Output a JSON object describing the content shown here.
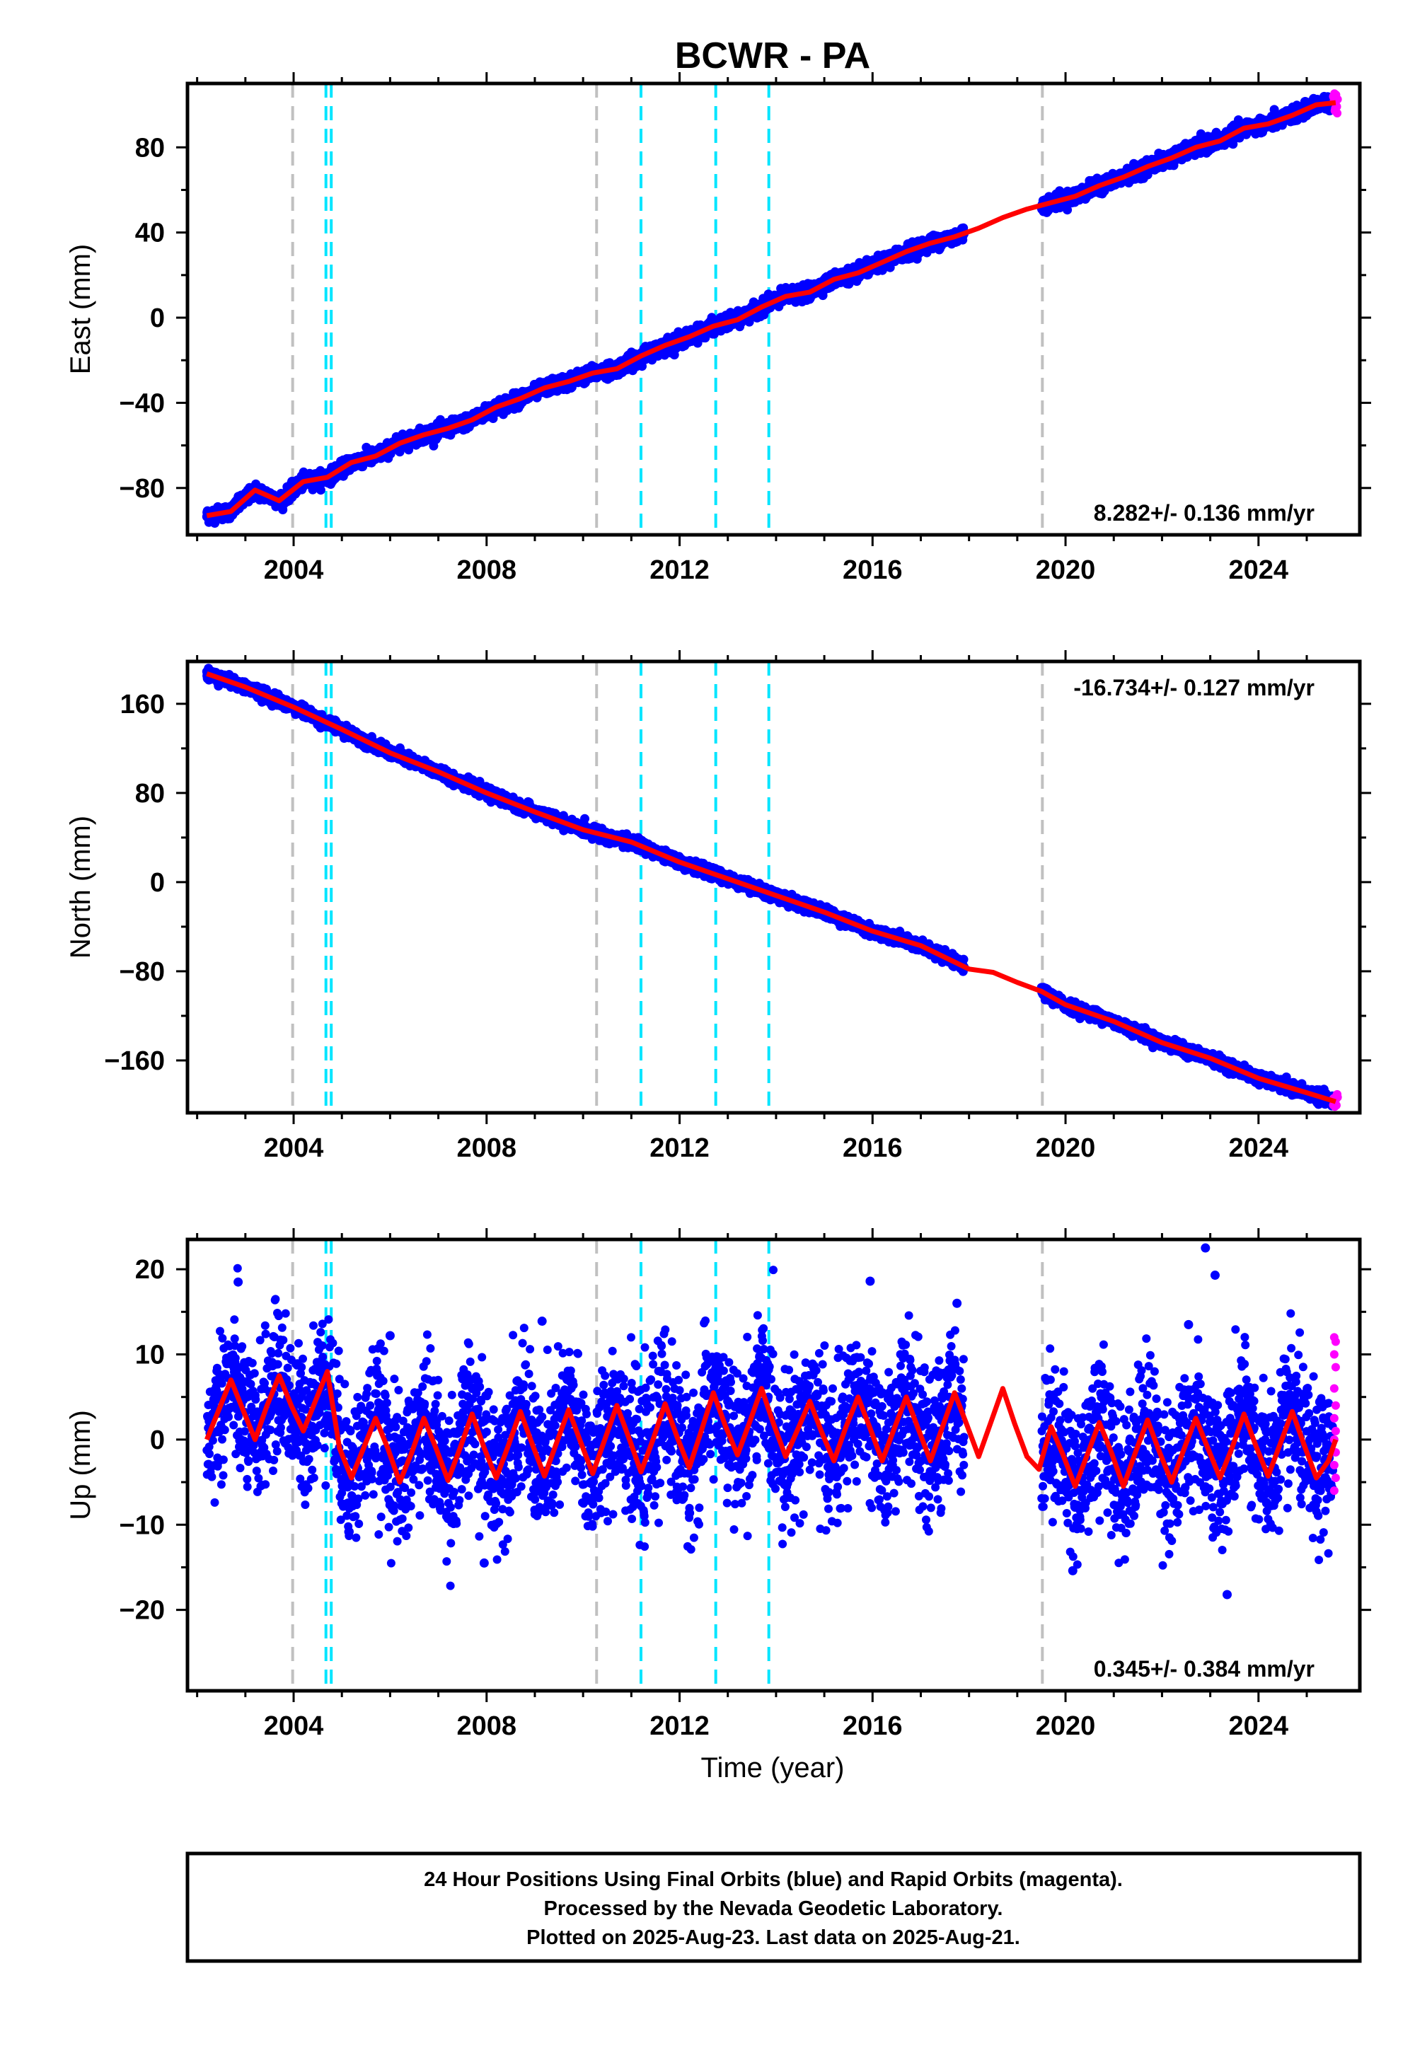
{
  "title": "BCWR - PA",
  "xlabel": "Time (year)",
  "footer": [
    "24 Hour Positions Using Final Orbits (blue) and Rapid Orbits (magenta).",
    "Processed by the Nevada Geodetic Laboratory.",
    "Plotted on 2025-Aug-23. Last data on 2025-Aug-21."
  ],
  "colors": {
    "final_orbits": "#0000ff",
    "rapid_orbits": "#ff00ff",
    "model": "#ff0000",
    "equipment_change_lines": "#c0c0c0",
    "earthquake_lines": "#00e5ff"
  },
  "chart_data": [
    {
      "type": "scatter",
      "ylabel": "East (mm)",
      "rate": "8.282+/- 0.136 mm/yr",
      "xlim": [
        2001.8,
        2026.1
      ],
      "ylim": [
        -102,
        110
      ],
      "xticks": [
        2004,
        2008,
        2012,
        2016,
        2020,
        2024
      ],
      "yticks": [
        -80,
        -40,
        0,
        40,
        80
      ],
      "ytick_labels": [
        "−80",
        "−40",
        "0",
        "40",
        "80"
      ],
      "model": {
        "x": [
          2002.2,
          2002.7,
          2003.2,
          2003.7,
          2004.2,
          2004.7,
          2005.2,
          2005.7,
          2006.2,
          2006.7,
          2007.2,
          2007.7,
          2008.2,
          2008.7,
          2009.2,
          2009.7,
          2010.2,
          2010.7,
          2011.2,
          2011.7,
          2012.2,
          2012.7,
          2013.2,
          2013.7,
          2014.2,
          2014.7,
          2015.2,
          2015.7,
          2016.2,
          2016.7,
          2017.2,
          2017.7,
          2018.2,
          2018.7,
          2019.2,
          2019.7,
          2020.2,
          2020.7,
          2021.2,
          2021.7,
          2022.2,
          2022.7,
          2023.2,
          2023.7,
          2024.2,
          2024.7,
          2025.2,
          2025.6
        ],
        "y": [
          -93,
          -91,
          -81,
          -86,
          -77,
          -75,
          -68,
          -65,
          -59,
          -55,
          -52,
          -48,
          -42,
          -38,
          -33,
          -30,
          -26,
          -24,
          -18,
          -13,
          -9,
          -4,
          -1,
          5,
          10,
          12,
          18,
          21,
          26,
          31,
          35,
          38,
          42,
          47,
          51,
          54,
          57,
          62,
          66,
          71,
          75,
          80,
          83,
          89,
          91,
          95,
          100,
          101
        ]
      },
      "final_orbits_range": [
        2002.2,
        2025.55
      ],
      "rapid_orbits_range": [
        2025.55,
        2025.64
      ],
      "data_gap": [
        2017.9,
        2019.5
      ],
      "equipment_changes": [
        2003.98,
        2010.28,
        2019.52
      ],
      "earthquakes": [
        2004.67,
        2004.78,
        2011.2,
        2012.75,
        2013.85
      ]
    },
    {
      "type": "scatter",
      "ylabel": "North (mm)",
      "rate": "-16.734+/- 0.127 mm/yr",
      "xlim": [
        2001.8,
        2026.1
      ],
      "ylim": [
        -207,
        198
      ],
      "xticks": [
        2004,
        2008,
        2012,
        2016,
        2020,
        2024
      ],
      "yticks": [
        -160,
        -80,
        0,
        80,
        160
      ],
      "ytick_labels": [
        "−160",
        "−80",
        "0",
        "80",
        "160"
      ],
      "model": {
        "x": [
          2002.2,
          2003.0,
          2004.0,
          2005.0,
          2006.0,
          2007.0,
          2008.0,
          2009.0,
          2010.0,
          2011.0,
          2012.0,
          2013.0,
          2014.0,
          2015.0,
          2016.0,
          2017.0,
          2018.0,
          2018.5,
          2019.0,
          2019.5,
          2020.0,
          2021.0,
          2022.0,
          2023.0,
          2024.0,
          2025.0,
          2025.6
        ],
        "y": [
          187,
          175,
          157,
          137,
          116,
          99,
          80,
          63,
          47,
          36,
          18,
          3,
          -12,
          -27,
          -44,
          -57,
          -78,
          -81,
          -90,
          -98,
          -110,
          -125,
          -144,
          -158,
          -176,
          -189,
          -197
        ]
      },
      "final_orbits_range": [
        2002.2,
        2025.55
      ],
      "rapid_orbits_range": [
        2025.55,
        2025.64
      ],
      "data_gap": [
        2017.9,
        2019.5
      ],
      "equipment_changes": [
        2003.98,
        2010.28,
        2019.52
      ],
      "earthquakes": [
        2004.67,
        2004.78,
        2011.2,
        2012.75,
        2013.85
      ]
    },
    {
      "type": "scatter",
      "ylabel": "Up (mm)",
      "rate": "0.345+/- 0.384 mm/yr",
      "xlim": [
        2001.8,
        2026.1
      ],
      "ylim": [
        -29.5,
        23.5
      ],
      "xticks": [
        2004,
        2008,
        2012,
        2016,
        2020,
        2024
      ],
      "yticks": [
        -20,
        -10,
        0,
        10,
        20
      ],
      "ytick_labels": [
        "−20",
        "−10",
        "0",
        "10",
        "20"
      ],
      "model": {
        "x": [
          2002.2,
          2002.45,
          2002.7,
          2002.95,
          2003.2,
          2003.45,
          2003.7,
          2003.95,
          2004.2,
          2004.45,
          2004.7,
          2004.95,
          2005.2,
          2005.45,
          2005.7,
          2005.95,
          2006.2,
          2006.45,
          2006.7,
          2006.95,
          2007.2,
          2007.45,
          2007.7,
          2007.95,
          2008.2,
          2008.45,
          2008.7,
          2008.95,
          2009.2,
          2009.45,
          2009.7,
          2009.95,
          2010.2,
          2010.45,
          2010.7,
          2010.95,
          2011.2,
          2011.45,
          2011.7,
          2011.95,
          2012.2,
          2012.45,
          2012.7,
          2012.95,
          2013.2,
          2013.45,
          2013.7,
          2013.95,
          2014.2,
          2014.45,
          2014.7,
          2014.95,
          2015.2,
          2015.45,
          2015.7,
          2015.95,
          2016.2,
          2016.45,
          2016.7,
          2016.95,
          2017.2,
          2017.45,
          2017.7,
          2017.95,
          2018.2,
          2018.45,
          2018.7,
          2018.95,
          2019.2,
          2019.45,
          2019.7,
          2019.95,
          2020.2,
          2020.45,
          2020.7,
          2020.95,
          2021.2,
          2021.45,
          2021.7,
          2021.95,
          2022.2,
          2022.45,
          2022.7,
          2022.95,
          2023.2,
          2023.45,
          2023.7,
          2023.95,
          2024.2,
          2024.45,
          2024.7,
          2024.95,
          2025.2,
          2025.45,
          2025.6
        ],
        "y": [
          0,
          3.5,
          7,
          3.5,
          0,
          4,
          7.5,
          4,
          1,
          4.5,
          8,
          -1,
          -4.5,
          -1,
          2.5,
          -1,
          -5,
          -1.5,
          2.5,
          -1,
          -4.8,
          -1,
          3,
          -1,
          -4.5,
          -0.7,
          3.3,
          -0.6,
          -4.3,
          -0.4,
          3.5,
          -0.3,
          -4,
          0,
          4,
          0.2,
          -3.8,
          0,
          4.2,
          0.3,
          -3.3,
          1,
          5.5,
          1.6,
          -1.8,
          2,
          6,
          1.8,
          -2,
          1.2,
          4.5,
          0.8,
          -2.5,
          1.5,
          5,
          1.3,
          -2.5,
          1.3,
          5,
          1.2,
          -2.5,
          1.5,
          5.5,
          1.8,
          -2,
          2,
          6,
          1.8,
          -2,
          -3.5,
          1.5,
          -1.8,
          -5.5,
          -1.8,
          2,
          -1.5,
          -5.5,
          -1.5,
          2.3,
          -1.5,
          -5,
          -1.2,
          2.5,
          -1,
          -4.5,
          -1,
          3,
          -0.8,
          -4.3,
          -0.5,
          3.3,
          -0.7,
          -4.5,
          -2.5,
          0
        ]
      },
      "annual_amplitude": 4.5,
      "scatter_std": 4.2,
      "outliers": [
        {
          "x": 2022.9,
          "y": 22.5
        },
        {
          "x": 2023.1,
          "y": 19.3
        },
        {
          "x": 2023.35,
          "y": -18.2
        },
        {
          "x": 2002.85,
          "y": 18.5
        },
        {
          "x": 2015.95,
          "y": 18.6
        },
        {
          "x": 2022.55,
          "y": 13.5
        },
        {
          "x": 2009.15,
          "y": 13.9
        },
        {
          "x": 2006.0,
          "y": 12.2
        },
        {
          "x": 2017.75,
          "y": 16.0
        },
        {
          "x": 2007.95,
          "y": -14.5
        },
        {
          "x": 2020.15,
          "y": -15.4
        }
      ],
      "rapid_points": [
        12,
        11.5,
        10,
        8.5,
        6,
        4,
        2.5,
        1,
        0,
        -1.5,
        -3,
        -4.5,
        -6
      ],
      "final_orbits_range": [
        2002.2,
        2025.55
      ],
      "rapid_orbits_range": [
        2025.55,
        2025.64
      ],
      "data_gap": [
        2017.9,
        2019.5
      ],
      "equipment_changes": [
        2003.98,
        2010.28,
        2019.52
      ],
      "earthquakes": [
        2004.67,
        2004.78,
        2011.2,
        2012.75,
        2013.85
      ]
    }
  ]
}
